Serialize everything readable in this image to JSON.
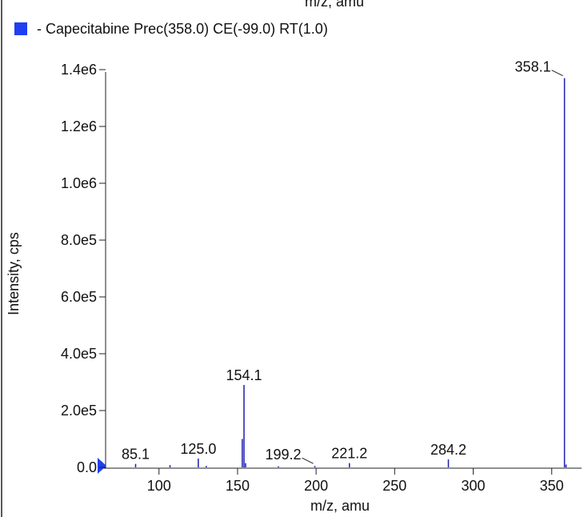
{
  "chart_data": {
    "type": "spectrum",
    "top_cut_label": "m/z, amu",
    "legend": "- Capecitabine Prec(358.0) CE(-99.0) RT(1.0)",
    "xlabel": "m/z, amu",
    "ylabel": "Intensity, cps",
    "color": "#1c1cb0",
    "legend_color": "#1f3ff0",
    "x": [
      85.1,
      107.0,
      125.0,
      130.1,
      153.0,
      154.1,
      155.1,
      176.0,
      199.2,
      221.2,
      284.2,
      358.1,
      359.1
    ],
    "values": [
      12000,
      8000,
      31000,
      5000,
      100000,
      290000,
      15000,
      4000,
      5000,
      15000,
      28000,
      1370000,
      10000
    ],
    "x_labels": [
      "85.1",
      null,
      "125.0",
      null,
      null,
      "154.1",
      null,
      null,
      "199.2",
      "221.2",
      "284.2",
      "358.1",
      null
    ],
    "xlim": [
      66,
      369
    ],
    "ylim": [
      0,
      1400000
    ],
    "xticks": [
      100,
      150,
      200,
      250,
      300,
      350
    ],
    "yticks": [
      {
        "value": 0,
        "label": "0.0"
      },
      {
        "value": 200000,
        "label": "2.0e5"
      },
      {
        "value": 400000,
        "label": "4.0e5"
      },
      {
        "value": 600000,
        "label": "6.0e5"
      },
      {
        "value": 800000,
        "label": "8.0e5"
      },
      {
        "value": 1000000,
        "label": "1.0e6"
      },
      {
        "value": 1200000,
        "label": "1.2e6"
      },
      {
        "value": 1400000,
        "label": "1.4e6"
      }
    ]
  }
}
